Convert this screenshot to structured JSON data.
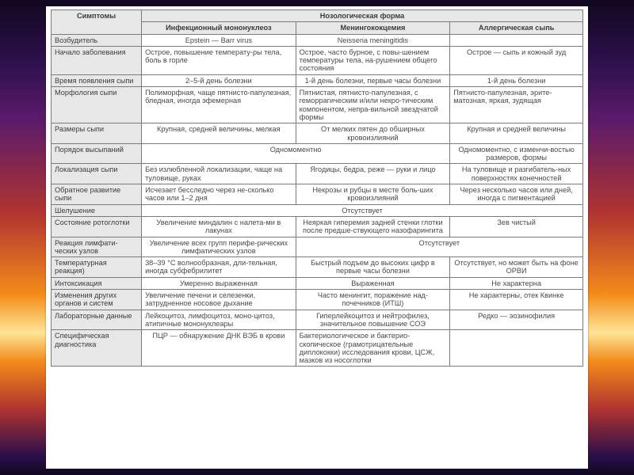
{
  "table": {
    "background_color": "#ffffff",
    "border_color": "#7a7a7a",
    "header_bg": "#e7e7e7",
    "text_color": "#4a4a4a",
    "font_size_pt": 7,
    "header": {
      "symptom_col": "Симптомы",
      "group_title": "Нозологическая форма",
      "sub": [
        "Инфекционный мононуклеоз",
        "Менингококцемия",
        "Аллергическая сыпь"
      ]
    },
    "rows": [
      {
        "label": "Возбудитель",
        "cells": [
          {
            "text": "Epstein — Barr virus",
            "align": "center"
          },
          {
            "text": "Neisseria meningitidis",
            "align": "center"
          },
          {
            "text": "",
            "align": "center"
          }
        ]
      },
      {
        "label": "Начало заболевания",
        "cells": [
          {
            "text": "Острое, повышение температу-ры тела, боль в горле"
          },
          {
            "text": "Острое, часто бурное, с повы-шением температуры тела, на-рушением общего состояния"
          },
          {
            "text": "Острое — сыпь и кожный зуд",
            "align": "center"
          }
        ]
      },
      {
        "label": "Время появления сыпи",
        "cells": [
          {
            "text": "2–5-й день болезни",
            "align": "center"
          },
          {
            "text": "1-й день болезни, первые часы болезни",
            "align": "center"
          },
          {
            "text": "1-й день болезни",
            "align": "center"
          }
        ]
      },
      {
        "label": "Морфология сыпи",
        "cells": [
          {
            "text": "Полиморфная, чаще пятнисто-папулезная, бледная, иногда эфемерная"
          },
          {
            "text": "Пятнистая, пятнисто-папулезная, с геморрагическим и/или некро-тическим компонентом, непра-вильной звездчатой формы"
          },
          {
            "text": "Пятнисто-папулезная, эрите-матозная, яркая, зудящая"
          }
        ]
      },
      {
        "label": "Размеры сыпи",
        "cells": [
          {
            "text": "Крупная, средней величины, мелкая",
            "align": "center"
          },
          {
            "text": "От мелких пятен до обширных кровоизлияний",
            "align": "center"
          },
          {
            "text": "Крупная и средней величины",
            "align": "center"
          }
        ]
      },
      {
        "label": "Порядок высыпаний",
        "cells": [
          {
            "text": "Одномоментно",
            "align": "center",
            "colspan": 2
          },
          {
            "text": "Одномоментно, с изменчи-востью размеров, формы",
            "align": "center"
          }
        ]
      },
      {
        "label": "Локализация сыпи",
        "cells": [
          {
            "text": "Без излюбленной локализации, чаще на туловище, руках"
          },
          {
            "text": "Ягодицы, бедра, реже — руки и лицо",
            "align": "center"
          },
          {
            "text": "На туловище и разгибатель-ных поверхностях конечностей",
            "align": "center"
          }
        ]
      },
      {
        "label": "Обратное развитие сыпи",
        "cells": [
          {
            "text": "Исчезает бесследно через не-сколько часов или 1–2 дня"
          },
          {
            "text": "Некрозы и рубцы в месте боль-ших кровоизлияний",
            "align": "center"
          },
          {
            "text": "Через несколько часов или дней, иногда с пигментацией",
            "align": "center"
          }
        ]
      },
      {
        "label": "Шелушение",
        "cells": [
          {
            "text": "Отсутствует",
            "align": "center",
            "colspan": 3
          }
        ]
      },
      {
        "label": "Состояние ротоглотки",
        "cells": [
          {
            "text": "Увеличение миндалин с налета-ми в лакунах",
            "align": "center"
          },
          {
            "text": "Неяркая гиперемия задней стенки глотки после предше-ствующего назофарингита",
            "align": "center"
          },
          {
            "text": "Зев чистый",
            "align": "center"
          }
        ]
      },
      {
        "label": "Реакция лимфати-ческих узлов",
        "cells": [
          {
            "text": "Увеличение всех групп перифе-рических лимфатических узлов",
            "align": "center"
          },
          {
            "text": "Отсутствует",
            "align": "center",
            "colspan": 2
          }
        ]
      },
      {
        "label": "Температурная реакция)",
        "cells": [
          {
            "text": "38–39 °C волнообразная, дли-тельная, иногда субфебрилитет"
          },
          {
            "text": "Быстрый подъем до высоких цифр в первые часы болезни",
            "align": "center"
          },
          {
            "text": "Отсутствует, но может быть на фоне ОРВИ",
            "align": "center"
          }
        ]
      },
      {
        "label": "Интоксикация",
        "cells": [
          {
            "text": "Умеренно выраженная",
            "align": "center"
          },
          {
            "text": "Выраженная",
            "align": "center"
          },
          {
            "text": "Не характерна",
            "align": "center"
          }
        ]
      },
      {
        "label": "Изменения других органов и систем",
        "cells": [
          {
            "text": "Увеличение печени и селезенки, затрудненное носовое дыхание"
          },
          {
            "text": "Часто менингит, поражение над-почечников (ИТШ)",
            "align": "center"
          },
          {
            "text": "Не характерны, отек Квинке",
            "align": "center"
          }
        ]
      },
      {
        "label": "Лабораторные данные",
        "cells": [
          {
            "text": "Лейкоцитоз, лимфоцитоз, моно-цитоз, атипичные мононуклеары"
          },
          {
            "text": "Гиперлейкоцитоз и нейтрофилез, значительное повышение СОЭ",
            "align": "center"
          },
          {
            "text": "Редко — эозинофилия",
            "align": "center"
          }
        ]
      },
      {
        "label": "Специфическая диагностика",
        "cells": [
          {
            "text": "ПЦР — обнаружение ДНК ВЭБ в крови",
            "align": "center"
          },
          {
            "text": "Бактериологическое и бактерио-скопическое (грамотрицательные диплококки) исследования крови, ЦСЖ, мазков из носоглотки"
          },
          {
            "text": "",
            "align": "center"
          }
        ]
      }
    ]
  }
}
